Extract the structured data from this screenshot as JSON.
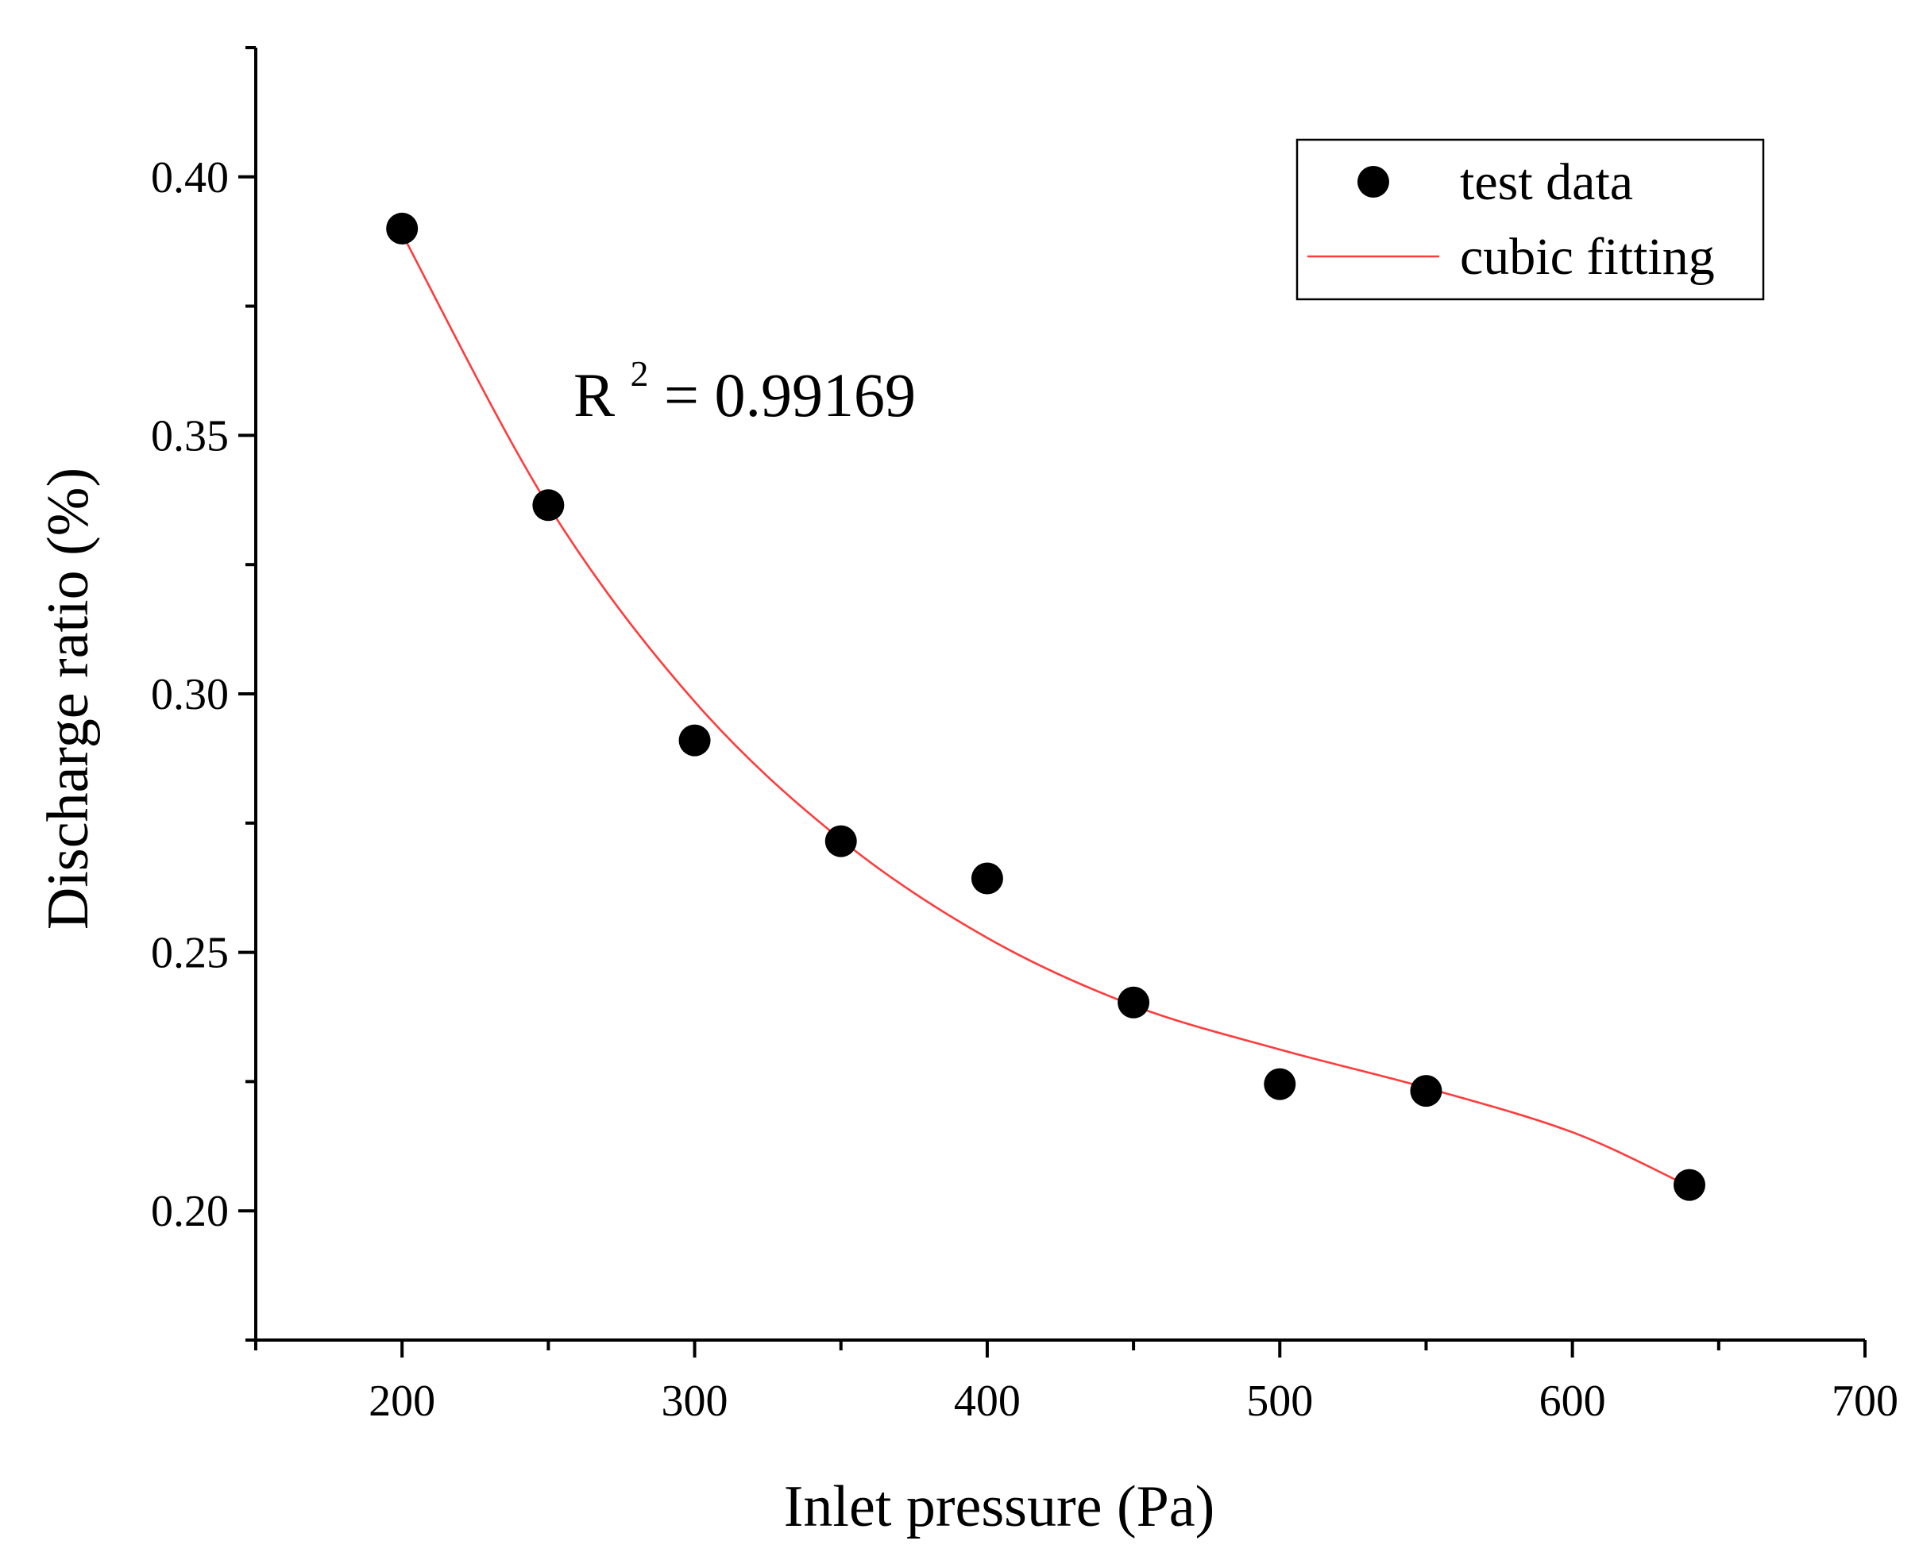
{
  "chart_data": {
    "type": "scatter",
    "title": "",
    "xlabel": "Inlet pressure (Pa)",
    "ylabel": "Discharge ratio (%)",
    "xlim": [
      150,
      700
    ],
    "ylim": [
      0.175,
      0.425
    ],
    "xticks": [
      200,
      300,
      400,
      500,
      600,
      700
    ],
    "xtick_labels": [
      "200",
      "300",
      "400",
      "500",
      "600",
      "700"
    ],
    "yticks": [
      0.2,
      0.25,
      0.3,
      0.35,
      0.4
    ],
    "ytick_labels": [
      "0.20",
      "0.25",
      "0.30",
      "0.35",
      "0.40"
    ],
    "series": [
      {
        "name": "test data",
        "kind": "scatter",
        "color": "#000000",
        "x": [
          200,
          250,
          300,
          350,
          400,
          450,
          500,
          550,
          640
        ],
        "y": [
          0.39,
          0.3365,
          0.291,
          0.2715,
          0.2643,
          0.2403,
          0.2245,
          0.2232,
          0.205
        ]
      },
      {
        "name": "cubic fitting",
        "kind": "line",
        "color": "#ff3b3b",
        "x": [
          200,
          250,
          300,
          350,
          400,
          450,
          500,
          550,
          600,
          640
        ],
        "y": [
          0.389,
          0.3364,
          0.2985,
          0.2718,
          0.2528,
          0.2397,
          0.2312,
          0.2238,
          0.2152,
          0.2047
        ]
      }
    ],
    "legend": {
      "position": "top-right",
      "entries": [
        "test data",
        "cubic fitting"
      ]
    },
    "annotation": {
      "base": "R",
      "superscript": "2",
      "rest": " = 0.99169"
    }
  }
}
